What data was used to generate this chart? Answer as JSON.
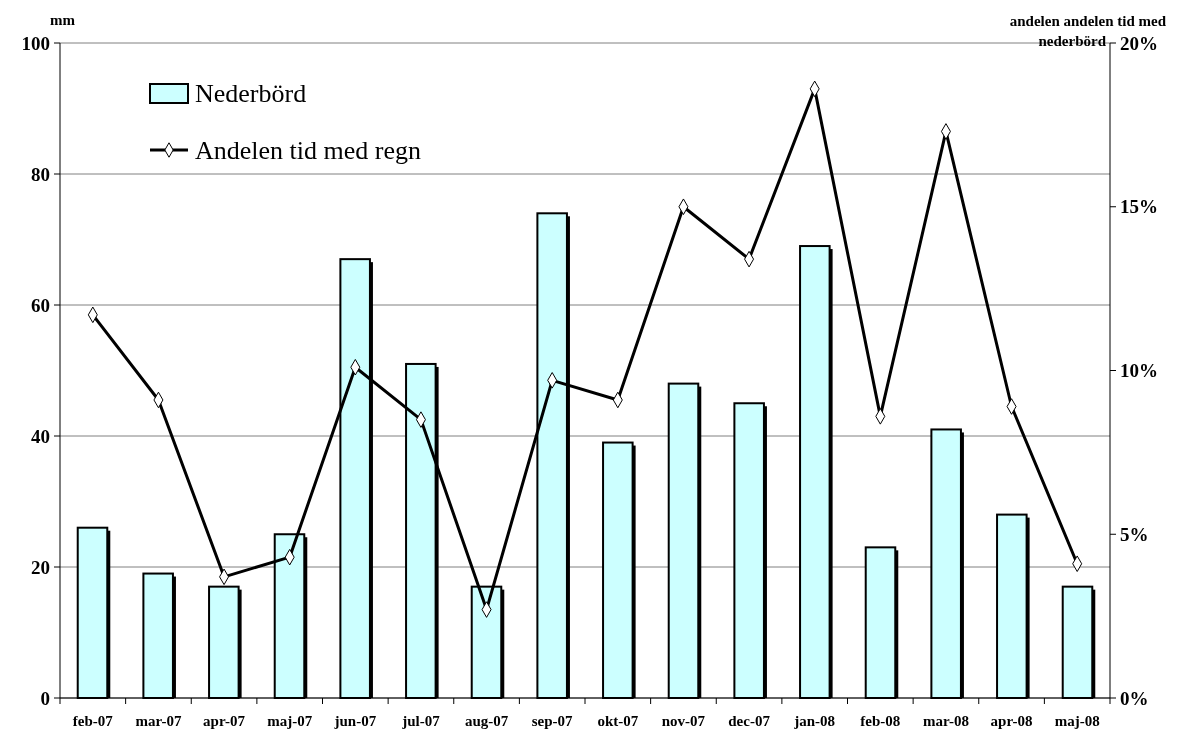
{
  "chart_data": {
    "type": "bar",
    "ylabel": "mm",
    "y2label": "andelen andelen tid med nederbörd",
    "categories": [
      "feb-07",
      "mar-07",
      "apr-07",
      "maj-07",
      "jun-07",
      "jul-07",
      "aug-07",
      "sep-07",
      "okt-07",
      "nov-07",
      "dec-07",
      "jan-08",
      "feb-08",
      "mar-08",
      "apr-08",
      "maj-08"
    ],
    "series": [
      {
        "name": "Nederbörd",
        "color": "#ccffff",
        "values": [
          26,
          19,
          17,
          25,
          67,
          51,
          17,
          74,
          39,
          48,
          45,
          69,
          23,
          41,
          28,
          17
        ]
      },
      {
        "name": "Andelen tid med regn",
        "type": "line",
        "axis": "y2",
        "color": "#000000",
        "marker": "diamond",
        "values": [
          11.7,
          9.1,
          3.7,
          4.3,
          10.1,
          8.5,
          2.7,
          9.7,
          9.1,
          15.0,
          13.4,
          18.6,
          8.6,
          17.3,
          8.9,
          4.1
        ]
      }
    ],
    "ylim": [
      0,
      100
    ],
    "yticks": [
      0,
      20,
      40,
      60,
      80,
      100
    ],
    "y2lim": [
      0,
      20
    ],
    "y2ticks": [
      {
        "value": 0,
        "label": "0%"
      },
      {
        "value": 5,
        "label": "5%"
      },
      {
        "value": 10,
        "label": "10%"
      },
      {
        "value": 15,
        "label": "15%"
      },
      {
        "value": 20,
        "label": "20%"
      }
    ],
    "grid": "y",
    "legend": "top left"
  }
}
